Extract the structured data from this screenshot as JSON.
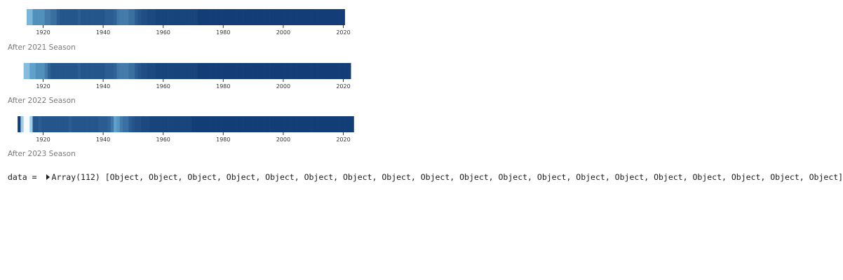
{
  "chart_data": [
    {
      "type": "heatmap",
      "x_start": 1915,
      "x_end": 2021,
      "xticks": [
        1920,
        1940,
        1960,
        1980,
        2000,
        2020
      ],
      "value_scale": "0 = lightest blue, 1 = darkest navy",
      "values": [
        0.45,
        0.45,
        0.62,
        0.62,
        0.62,
        0.62,
        0.7,
        0.7,
        0.75,
        0.75,
        0.82,
        0.85,
        0.85,
        0.85,
        0.85,
        0.85,
        0.85,
        0.82,
        0.85,
        0.85,
        0.85,
        0.85,
        0.85,
        0.85,
        0.85,
        0.85,
        0.82,
        0.82,
        0.82,
        0.8,
        0.72,
        0.7,
        0.7,
        0.7,
        0.75,
        0.75,
        0.82,
        0.85,
        0.88,
        0.88,
        0.9,
        0.9,
        0.9,
        0.92,
        0.92,
        0.92,
        0.92,
        0.92,
        0.92,
        0.92,
        0.92,
        0.92,
        0.92,
        0.92,
        0.92,
        0.92,
        0.92,
        0.95,
        0.95,
        0.95,
        0.95,
        0.95,
        0.95,
        0.95,
        0.95,
        0.95,
        0.95,
        0.95,
        0.95,
        0.95,
        0.95,
        0.95,
        0.95,
        0.95,
        0.95,
        0.95,
        0.95,
        0.95,
        0.95,
        0.95,
        0.95,
        0.95,
        0.95,
        0.95,
        0.95,
        0.95,
        0.95,
        0.95,
        0.95,
        0.95,
        0.95,
        0.95,
        0.95,
        0.95,
        0.95,
        0.95,
        0.95,
        0.95,
        0.95,
        0.95,
        0.95,
        0.95,
        0.95,
        0.95,
        0.95,
        0.95
      ],
      "caption": "After 2021 Season"
    },
    {
      "type": "heatmap",
      "x_start": 1914,
      "x_end": 2022,
      "xticks": [
        1920,
        1940,
        1960,
        1980,
        2000,
        2020
      ],
      "value_scale": "0 = lightest blue, 1 = darkest navy",
      "values": [
        0.4,
        0.4,
        0.55,
        0.55,
        0.62,
        0.62,
        0.62,
        0.7,
        0.8,
        0.85,
        0.85,
        0.85,
        0.85,
        0.85,
        0.85,
        0.85,
        0.85,
        0.85,
        0.82,
        0.85,
        0.85,
        0.85,
        0.85,
        0.85,
        0.85,
        0.85,
        0.85,
        0.82,
        0.82,
        0.82,
        0.8,
        0.72,
        0.7,
        0.7,
        0.7,
        0.75,
        0.75,
        0.82,
        0.85,
        0.88,
        0.88,
        0.9,
        0.9,
        0.9,
        0.92,
        0.92,
        0.92,
        0.92,
        0.92,
        0.92,
        0.92,
        0.92,
        0.92,
        0.92,
        0.92,
        0.92,
        0.92,
        0.92,
        0.95,
        0.95,
        0.95,
        0.95,
        0.95,
        0.95,
        0.95,
        0.95,
        0.95,
        0.95,
        0.95,
        0.95,
        0.95,
        0.95,
        0.95,
        0.95,
        0.95,
        0.95,
        0.95,
        0.95,
        0.95,
        0.95,
        0.95,
        0.95,
        0.95,
        0.95,
        0.95,
        0.95,
        0.95,
        0.95,
        0.95,
        0.95,
        0.95,
        0.95,
        0.95,
        0.95,
        0.95,
        0.95,
        0.95,
        0.95,
        0.95,
        0.95,
        0.95,
        0.95,
        0.95,
        0.95,
        0.95,
        0.95,
        0.95,
        0.95,
        0.95
      ],
      "caption": "After 2022 Season"
    },
    {
      "type": "heatmap",
      "x_start": 1912,
      "x_end": 2023,
      "xticks": [
        1920,
        1940,
        1960,
        1980,
        2000,
        2020
      ],
      "value_scale": "0 = lightest blue, 1 = darkest navy",
      "values": [
        0.95,
        0.3,
        0.0,
        0.0,
        0.3,
        0.85,
        0.85,
        0.82,
        0.85,
        0.85,
        0.85,
        0.85,
        0.85,
        0.85,
        0.85,
        0.85,
        0.85,
        0.82,
        0.85,
        0.85,
        0.85,
        0.85,
        0.85,
        0.85,
        0.85,
        0.85,
        0.85,
        0.82,
        0.82,
        0.82,
        0.8,
        0.72,
        0.55,
        0.6,
        0.7,
        0.75,
        0.75,
        0.82,
        0.85,
        0.88,
        0.88,
        0.9,
        0.9,
        0.9,
        0.92,
        0.92,
        0.92,
        0.92,
        0.92,
        0.92,
        0.92,
        0.92,
        0.92,
        0.92,
        0.92,
        0.92,
        0.92,
        0.92,
        0.95,
        0.95,
        0.95,
        0.95,
        0.95,
        0.95,
        0.95,
        0.95,
        0.95,
        0.95,
        0.95,
        0.95,
        0.95,
        0.95,
        0.95,
        0.95,
        0.95,
        0.95,
        0.95,
        0.95,
        0.95,
        0.95,
        0.95,
        0.95,
        0.95,
        0.95,
        0.95,
        0.95,
        0.95,
        0.95,
        0.95,
        0.95,
        0.95,
        0.95,
        0.95,
        0.95,
        0.95,
        0.95,
        0.95,
        0.95,
        0.95,
        0.95,
        0.95,
        0.95,
        0.95,
        0.95,
        0.95,
        0.95,
        0.95,
        0.95,
        0.95,
        0.95,
        0.95,
        0.95
      ],
      "caption": "After 2023 Season"
    }
  ],
  "colors": {
    "scale_light": "#f7fbff",
    "scale_mid": "#6aaed6",
    "scale_dark": "#08306b"
  },
  "console": {
    "var_name": "data",
    "equals": "=",
    "array_label": "Array(112)",
    "preview": "[Object, Object, Object, Object, Object, Object, Object, Object, Object, Object, Object, Object, Object, Object, Object, Object, Object, Object, Object]"
  }
}
